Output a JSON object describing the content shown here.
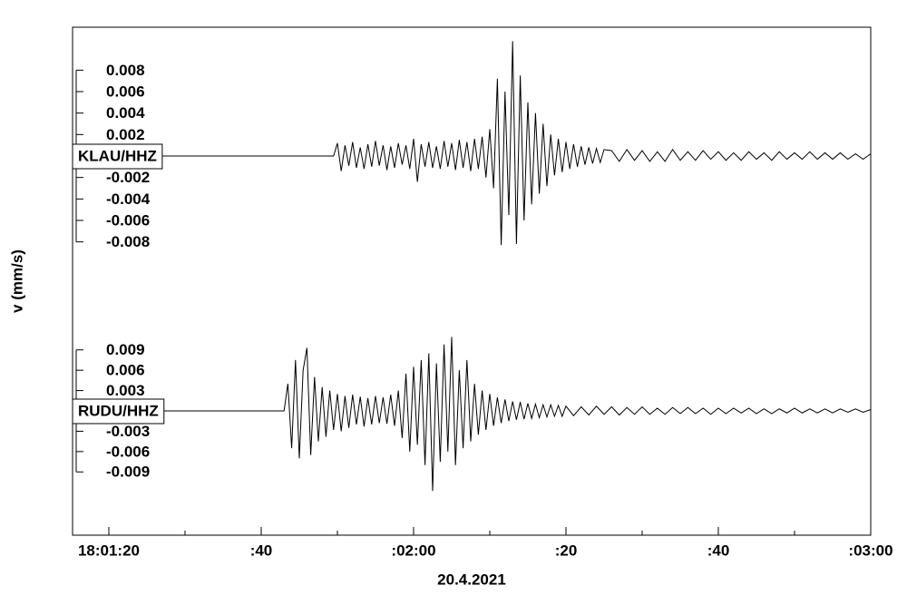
{
  "chart_data": {
    "type": "line",
    "xlabel": "20.4.2021",
    "ylabel": "v (mm/s)",
    "xlim": [
      15.24,
      120
    ],
    "xticks": [
      {
        "value": 20,
        "label": "18:01:20"
      },
      {
        "value": 40,
        "label": ":40"
      },
      {
        "value": 60,
        "label": ":02:00"
      },
      {
        "value": 80,
        "label": ":20"
      },
      {
        "value": 100,
        "label": ":40"
      },
      {
        "value": 120,
        "label": ":03:00"
      }
    ],
    "xminorticks": [
      30,
      50,
      70,
      90,
      110
    ],
    "series": [
      {
        "name": "KLAU/HHZ",
        "color": "#000000",
        "ylim": [
          -0.012,
          0.012
        ],
        "yticks": [
          0.008,
          0.006,
          0.004,
          0.002,
          -0.002,
          -0.004,
          -0.006,
          -0.008
        ],
        "x": [
          15.24,
          49.5,
          50,
          50.5,
          51,
          51.5,
          52,
          52.5,
          53,
          53.5,
          54,
          54.5,
          55,
          55.5,
          56,
          56.5,
          57,
          57.5,
          58,
          58.5,
          59,
          59.5,
          60,
          60.5,
          61,
          61.5,
          62,
          62.5,
          63,
          63.5,
          64,
          64.5,
          65,
          65.5,
          66,
          66.5,
          67,
          67.5,
          68,
          68.5,
          69,
          69.5,
          70,
          70.5,
          71,
          71.5,
          72,
          72.5,
          73,
          73.5,
          74,
          74.5,
          75,
          75.5,
          76,
          76.5,
          77,
          77.5,
          78,
          78.5,
          79,
          79.5,
          80,
          80.5,
          81,
          81.5,
          82,
          82.5,
          83,
          83.5,
          84,
          84.5,
          85,
          86,
          87,
          88,
          89,
          90,
          91,
          92,
          93,
          94,
          95,
          96,
          97,
          98,
          99,
          100,
          101,
          102,
          103,
          104,
          105,
          106,
          107,
          108,
          109,
          110,
          111,
          112,
          113,
          114,
          115,
          116,
          117,
          118,
          119,
          120
        ],
        "values": [
          0,
          0,
          0.0012,
          -0.0014,
          0.001,
          -0.0009,
          0.0013,
          -0.0011,
          0.0008,
          -0.0012,
          0.0011,
          -0.001,
          0.0014,
          -0.0009,
          0.001,
          -0.0013,
          0.0009,
          -0.0011,
          0.0012,
          -0.0008,
          0.001,
          -0.0012,
          0.0016,
          -0.0024,
          0.0011,
          -0.001,
          0.0013,
          -0.0011,
          0.0009,
          -0.0012,
          0.0014,
          -0.001,
          0.0012,
          -0.0013,
          0.0015,
          -0.0011,
          0.0013,
          -0.0014,
          0.0016,
          -0.0012,
          0.0018,
          -0.002,
          0.0025,
          -0.003,
          0.0072,
          -0.0083,
          0.006,
          -0.0055,
          0.0107,
          -0.0082,
          0.0075,
          -0.006,
          0.005,
          -0.0045,
          0.004,
          -0.0035,
          0.003,
          -0.0028,
          0.002,
          -0.0018,
          0.0016,
          -0.0015,
          0.0013,
          -0.0012,
          0.0011,
          -0.001,
          0.0009,
          -0.0008,
          0.0008,
          -0.0007,
          0.0007,
          -0.0006,
          0.0006,
          0.0005,
          -0.0005,
          0.0006,
          -0.0004,
          0.0005,
          -0.0005,
          0.0004,
          -0.0005,
          0.0006,
          -0.0004,
          0.0004,
          -0.0004,
          0.0005,
          -0.0003,
          0.0004,
          -0.0004,
          0.0003,
          -0.0004,
          0.0004,
          -0.0003,
          0.0003,
          -0.0004,
          0.0004,
          -0.0003,
          0.0003,
          -0.0003,
          0.0004,
          -0.0003,
          0.0003,
          -0.0003,
          0.0003,
          -0.0003,
          0.0002,
          -0.0003,
          0.0002
        ]
      },
      {
        "name": "RUDU/HHZ",
        "color": "#000000",
        "ylim": [
          -0.019,
          0.019
        ],
        "yticks": [
          0.009,
          0.006,
          0.003,
          -0.003,
          -0.006,
          -0.009
        ],
        "x": [
          15.24,
          43,
          43.5,
          44,
          44.5,
          45,
          45.5,
          46,
          46.5,
          47,
          47.5,
          48,
          48.5,
          49,
          49.5,
          50,
          50.5,
          51,
          51.5,
          52,
          52.5,
          53,
          53.5,
          54,
          54.5,
          55,
          55.5,
          56,
          56.5,
          57,
          57.5,
          58,
          58.5,
          59,
          59.5,
          60,
          60.5,
          61,
          61.5,
          62,
          62.5,
          63,
          63.5,
          64,
          64.5,
          65,
          65.5,
          66,
          66.5,
          67,
          67.5,
          68,
          68.5,
          69,
          69.5,
          70,
          70.5,
          71,
          71.5,
          72,
          72.5,
          73,
          73.5,
          74,
          74.5,
          75,
          75.5,
          76,
          76.5,
          77,
          77.5,
          78,
          78.5,
          79,
          79.5,
          80,
          81,
          82,
          83,
          84,
          85,
          86,
          87,
          88,
          89,
          90,
          91,
          92,
          93,
          94,
          95,
          96,
          97,
          98,
          99,
          100,
          101,
          102,
          103,
          104,
          105,
          106,
          107,
          108,
          109,
          110,
          111,
          112,
          113,
          114,
          115,
          116,
          117,
          118,
          119,
          120
        ],
        "values": [
          0,
          0,
          0.004,
          -0.0055,
          0.0075,
          -0.007,
          0.006,
          0.0093,
          -0.0065,
          0.005,
          -0.0045,
          0.0035,
          -0.0038,
          0.003,
          -0.0028,
          0.0025,
          -0.003,
          0.0022,
          -0.0025,
          0.0024,
          -0.002,
          0.0021,
          -0.0023,
          0.0019,
          -0.002,
          0.0022,
          -0.0018,
          0.002,
          -0.0019,
          0.0024,
          -0.0022,
          0.003,
          -0.004,
          0.0055,
          -0.006,
          0.0065,
          -0.005,
          0.0075,
          -0.008,
          0.0085,
          -0.0118,
          0.007,
          -0.0075,
          0.0098,
          -0.006,
          0.0109,
          -0.008,
          0.006,
          -0.0055,
          0.0075,
          -0.0045,
          0.004,
          -0.0035,
          0.003,
          -0.0028,
          0.0025,
          -0.0022,
          0.002,
          -0.0018,
          0.0017,
          -0.0015,
          0.0014,
          -0.0013,
          0.0013,
          -0.0012,
          0.0011,
          -0.0011,
          0.001,
          -0.001,
          0.0009,
          -0.0009,
          0.0009,
          -0.0008,
          0.0008,
          -0.0008,
          0.0007,
          -0.0007,
          0.0006,
          -0.0006,
          0.0007,
          -0.0005,
          0.0006,
          -0.0006,
          0.0005,
          -0.0005,
          0.0006,
          -0.0005,
          0.0004,
          -0.0005,
          0.0005,
          -0.0004,
          0.0005,
          -0.0004,
          0.0004,
          -0.0005,
          0.0004,
          -0.0004,
          0.0004,
          -0.0003,
          0.0004,
          -0.0004,
          0.0003,
          -0.0004,
          0.0003,
          -0.0003,
          0.0004,
          -0.0003,
          0.0003,
          -0.0003,
          0.0003,
          -0.0003,
          0.0003,
          -0.0002,
          0.0003,
          -0.0002,
          0.0002
        ]
      }
    ]
  }
}
